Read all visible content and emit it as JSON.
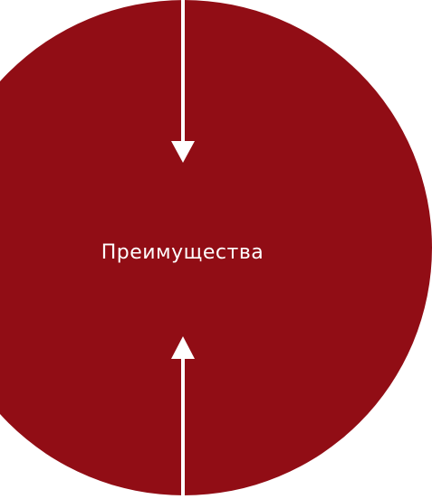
{
  "main": {
    "label": "Преимущества"
  },
  "colors": {
    "circle": "#910d15",
    "arrow": "#ffffff",
    "text": "#ffffff",
    "background": "#ffffff"
  },
  "icons": {
    "top_arrow": "arrow-down-icon",
    "bottom_arrow": "arrow-up-icon"
  }
}
